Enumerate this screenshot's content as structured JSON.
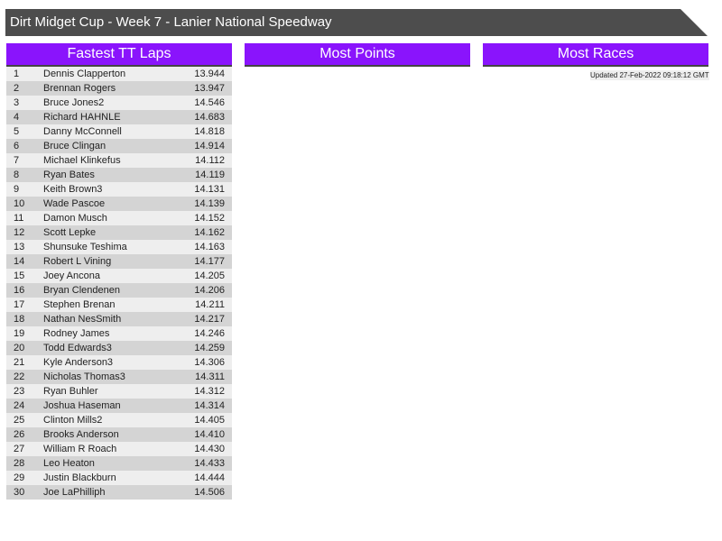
{
  "title": "Dirt Midget Cup - Week 7 - Lanier National Speedway",
  "colors": {
    "header_bg": "#4d4d4d",
    "panel_header": "#8a14fc",
    "row_odd": "#eeeeee",
    "row_even": "#d4d4d4"
  },
  "panels": {
    "fastest": {
      "title": "Fastest TT Laps",
      "rows": [
        {
          "pos": "1",
          "name": "Dennis Clapperton",
          "time": "13.944"
        },
        {
          "pos": "2",
          "name": "Brennan Rogers",
          "time": "13.947"
        },
        {
          "pos": "3",
          "name": "Bruce Jones2",
          "time": "14.546"
        },
        {
          "pos": "4",
          "name": "Richard HAHNLE",
          "time": "14.683"
        },
        {
          "pos": "5",
          "name": "Danny McConnell",
          "time": "14.818"
        },
        {
          "pos": "6",
          "name": "Bruce Clingan",
          "time": "14.914"
        },
        {
          "pos": "7",
          "name": "Michael Klinkefus",
          "time": "14.112"
        },
        {
          "pos": "8",
          "name": "Ryan Bates",
          "time": "14.119"
        },
        {
          "pos": "9",
          "name": "Keith Brown3",
          "time": "14.131"
        },
        {
          "pos": "10",
          "name": "Wade Pascoe",
          "time": "14.139"
        },
        {
          "pos": "11",
          "name": "Damon Musch",
          "time": "14.152"
        },
        {
          "pos": "12",
          "name": "Scott Lepke",
          "time": "14.162"
        },
        {
          "pos": "13",
          "name": "Shunsuke Teshima",
          "time": "14.163"
        },
        {
          "pos": "14",
          "name": "Robert L Vining",
          "time": "14.177"
        },
        {
          "pos": "15",
          "name": "Joey Ancona",
          "time": "14.205"
        },
        {
          "pos": "16",
          "name": "Bryan Clendenen",
          "time": "14.206"
        },
        {
          "pos": "17",
          "name": "Stephen Brenan",
          "time": "14.211"
        },
        {
          "pos": "18",
          "name": "Nathan NesSmith",
          "time": "14.217"
        },
        {
          "pos": "19",
          "name": "Rodney James",
          "time": "14.246"
        },
        {
          "pos": "20",
          "name": "Todd Edwards3",
          "time": "14.259"
        },
        {
          "pos": "21",
          "name": "Kyle Anderson3",
          "time": "14.306"
        },
        {
          "pos": "22",
          "name": "Nicholas Thomas3",
          "time": "14.311"
        },
        {
          "pos": "23",
          "name": "Ryan Buhler",
          "time": "14.312"
        },
        {
          "pos": "24",
          "name": "Joshua Haseman",
          "time": "14.314"
        },
        {
          "pos": "25",
          "name": "Clinton Mills2",
          "time": "14.405"
        },
        {
          "pos": "26",
          "name": "Brooks Anderson",
          "time": "14.410"
        },
        {
          "pos": "27",
          "name": "William R Roach",
          "time": "14.430"
        },
        {
          "pos": "28",
          "name": "Leo Heaton",
          "time": "14.433"
        },
        {
          "pos": "29",
          "name": "Justin Blackburn",
          "time": "14.444"
        },
        {
          "pos": "30",
          "name": "Joe LaPhilliph",
          "time": "14.506"
        }
      ]
    },
    "points": {
      "title": "Most Points"
    },
    "races": {
      "title": "Most Races"
    }
  },
  "updated": "Updated 27-Feb-2022 09:18:12 GMT"
}
